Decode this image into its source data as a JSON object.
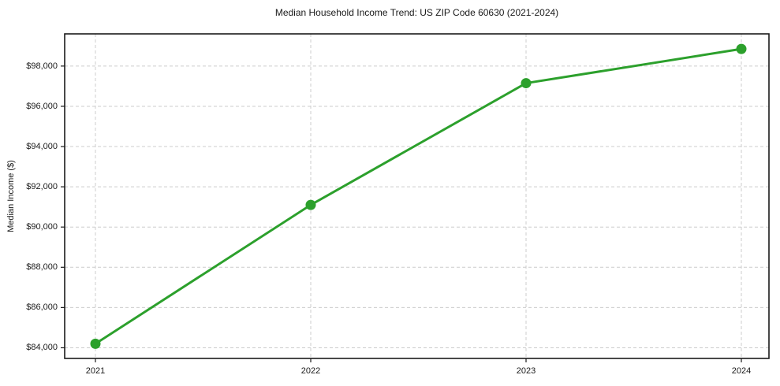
{
  "chart_data": {
    "type": "line",
    "title": "Median Household Income Trend: US ZIP Code 60630 (2021-2024)",
    "xlabel": "",
    "ylabel": "Median Income ($)",
    "x": [
      "2021",
      "2022",
      "2023",
      "2024"
    ],
    "series": [
      {
        "name": "Median Household Income",
        "values": [
          84200,
          91100,
          97150,
          98850
        ]
      }
    ],
    "y_ticks": [
      {
        "value": 84000,
        "label": "$84,000"
      },
      {
        "value": 86000,
        "label": "$86,000"
      },
      {
        "value": 88000,
        "label": "$88,000"
      },
      {
        "value": 90000,
        "label": "$90,000"
      },
      {
        "value": 92000,
        "label": "$92,000"
      },
      {
        "value": 94000,
        "label": "$94,000"
      },
      {
        "value": 96000,
        "label": "$96,000"
      },
      {
        "value": 98000,
        "label": "$98,000"
      }
    ],
    "ylim": [
      83470,
      99600
    ],
    "grid": "dashed",
    "legend": "none"
  },
  "colors": {
    "line": "#2ca02c",
    "marker": "#2ca02c",
    "grid": "#cccccc",
    "spine": "#1a1a1a",
    "tick": "#1a1a1a",
    "text": "#1a1a1a",
    "background": "#ffffff"
  }
}
